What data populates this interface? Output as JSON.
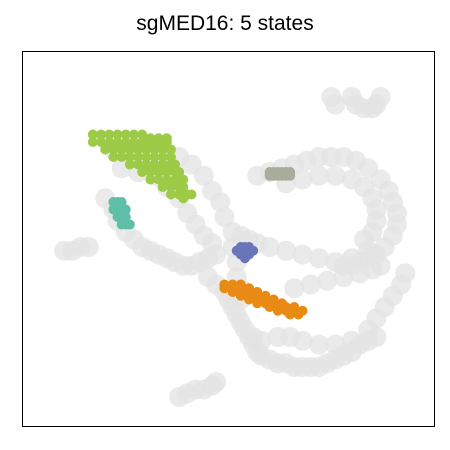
{
  "chart_data": {
    "type": "scatter",
    "title": "sgMED16: 5 states",
    "xlabel": "",
    "ylabel": "",
    "xlim": [
      0,
      100
    ],
    "ylim": [
      0,
      100
    ],
    "grid": false,
    "legend": "none",
    "axis_ticks": false,
    "background_color": "#e3e3e3",
    "background_clusters": [
      {
        "name": "upper-left-arm",
        "points": [
          [
            22,
            74
          ],
          [
            26,
            73
          ],
          [
            30,
            73
          ],
          [
            34,
            73
          ],
          [
            38,
            72
          ],
          [
            41,
            70
          ],
          [
            44,
            67
          ],
          [
            46,
            63
          ],
          [
            48,
            60
          ],
          [
            49,
            56
          ],
          [
            24,
            69
          ],
          [
            28,
            68
          ],
          [
            32,
            67
          ],
          [
            35,
            64
          ],
          [
            38,
            61
          ],
          [
            40,
            57
          ],
          [
            42,
            54
          ],
          [
            44,
            51
          ],
          [
            46,
            49
          ]
        ]
      },
      {
        "name": "left-blob",
        "points": [
          [
            20,
            61
          ],
          [
            22,
            58
          ],
          [
            23,
            55
          ],
          [
            25,
            52
          ],
          [
            27,
            50
          ],
          [
            29,
            48
          ],
          [
            31,
            47
          ],
          [
            33,
            46
          ],
          [
            35,
            45
          ],
          [
            37,
            44
          ],
          [
            39,
            43
          ],
          [
            41,
            43
          ],
          [
            43,
            44
          ],
          [
            45,
            45
          ],
          [
            47,
            46
          ]
        ]
      },
      {
        "name": "center-body",
        "points": [
          [
            45,
            40
          ],
          [
            47,
            38
          ],
          [
            49,
            36
          ],
          [
            50,
            34
          ],
          [
            51,
            32
          ],
          [
            52,
            30
          ],
          [
            53,
            28
          ],
          [
            54,
            26
          ],
          [
            55,
            24
          ],
          [
            56,
            22
          ],
          [
            57,
            20
          ],
          [
            58,
            19
          ],
          [
            60,
            18
          ],
          [
            62,
            17
          ],
          [
            64,
            17
          ],
          [
            66,
            16
          ],
          [
            68,
            16
          ],
          [
            70,
            16
          ],
          [
            72,
            16
          ],
          [
            74,
            17
          ],
          [
            76,
            18
          ],
          [
            78,
            19
          ],
          [
            80,
            20
          ],
          [
            82,
            22
          ],
          [
            84,
            23
          ],
          [
            86,
            24
          ]
        ]
      },
      {
        "name": "center-stem",
        "points": [
          [
            51,
            52
          ],
          [
            51,
            48
          ],
          [
            52,
            44
          ],
          [
            52,
            40
          ],
          [
            53,
            37
          ],
          [
            53,
            34
          ]
        ]
      },
      {
        "name": "right-arc",
        "points": [
          [
            57,
            67
          ],
          [
            60,
            68
          ],
          [
            63,
            69
          ],
          [
            66,
            70
          ],
          [
            69,
            71
          ],
          [
            72,
            72
          ],
          [
            75,
            72
          ],
          [
            78,
            72
          ],
          [
            81,
            71
          ],
          [
            84,
            69
          ],
          [
            87,
            66
          ],
          [
            89,
            63
          ],
          [
            90,
            60
          ],
          [
            91,
            57
          ],
          [
            91,
            54
          ],
          [
            90,
            51
          ],
          [
            88,
            48
          ],
          [
            86,
            46
          ],
          [
            84,
            45
          ],
          [
            82,
            44
          ],
          [
            80,
            43
          ],
          [
            78,
            43
          ],
          [
            76,
            44
          ],
          [
            72,
            45
          ],
          [
            68,
            46
          ],
          [
            64,
            47
          ],
          [
            60,
            48
          ],
          [
            57,
            49
          ],
          [
            55,
            50
          ],
          [
            53,
            51
          ],
          [
            64,
            65
          ],
          [
            68,
            66
          ],
          [
            72,
            67
          ],
          [
            76,
            67
          ],
          [
            80,
            66
          ],
          [
            83,
            64
          ],
          [
            85,
            61
          ],
          [
            86,
            58
          ],
          [
            86,
            55
          ],
          [
            85,
            52
          ],
          [
            83,
            50
          ]
        ]
      },
      {
        "name": "right-lower-band",
        "points": [
          [
            66,
            37
          ],
          [
            70,
            38
          ],
          [
            74,
            39
          ],
          [
            78,
            40
          ],
          [
            82,
            41
          ],
          [
            85,
            42
          ],
          [
            87,
            43
          ],
          [
            80,
            45
          ],
          [
            84,
            47
          ]
        ]
      },
      {
        "name": "top-right-small",
        "points": [
          [
            80,
            88
          ],
          [
            81,
            86
          ],
          [
            83,
            85
          ],
          [
            85,
            85
          ],
          [
            86,
            86
          ],
          [
            87,
            88
          ],
          [
            75,
            88
          ],
          [
            76,
            86
          ]
        ]
      },
      {
        "name": "left-small",
        "points": [
          [
            10,
            47
          ],
          [
            12,
            47
          ],
          [
            14,
            48
          ],
          [
            16,
            48
          ]
        ]
      },
      {
        "name": "bottom-small",
        "points": [
          [
            38,
            8
          ],
          [
            40,
            9
          ],
          [
            42,
            10
          ],
          [
            44,
            10
          ],
          [
            46,
            11
          ],
          [
            47,
            12
          ]
        ]
      },
      {
        "name": "lower-diagonal",
        "points": [
          [
            56,
            24
          ],
          [
            58,
            23
          ],
          [
            62,
            24
          ],
          [
            65,
            24
          ],
          [
            68,
            23
          ],
          [
            72,
            22
          ],
          [
            76,
            22
          ],
          [
            80,
            23
          ],
          [
            84,
            26
          ],
          [
            86,
            29
          ],
          [
            88,
            32
          ],
          [
            90,
            35
          ],
          [
            92,
            38
          ],
          [
            93,
            41
          ]
        ]
      }
    ],
    "highlighted_states": [
      {
        "color": "#9dcb47",
        "points": [
          [
            17,
            78
          ],
          [
            19,
            78
          ],
          [
            21,
            78
          ],
          [
            23,
            78
          ],
          [
            25,
            78
          ],
          [
            27,
            78
          ],
          [
            29,
            78
          ],
          [
            31,
            77
          ],
          [
            33,
            77
          ],
          [
            35,
            77
          ],
          [
            17,
            76
          ],
          [
            19,
            76
          ],
          [
            21,
            76
          ],
          [
            23,
            76
          ],
          [
            25,
            76
          ],
          [
            27,
            76
          ],
          [
            29,
            76
          ],
          [
            31,
            76
          ],
          [
            33,
            76
          ],
          [
            35,
            76
          ],
          [
            20,
            74
          ],
          [
            22,
            74
          ],
          [
            24,
            74
          ],
          [
            26,
            74
          ],
          [
            28,
            74
          ],
          [
            30,
            74
          ],
          [
            32,
            74
          ],
          [
            34,
            74
          ],
          [
            36,
            74
          ],
          [
            22,
            72
          ],
          [
            24,
            72
          ],
          [
            26,
            72
          ],
          [
            28,
            72
          ],
          [
            30,
            72
          ],
          [
            32,
            72
          ],
          [
            34,
            72
          ],
          [
            36,
            72
          ],
          [
            26,
            70
          ],
          [
            28,
            70
          ],
          [
            30,
            70
          ],
          [
            32,
            70
          ],
          [
            34,
            70
          ],
          [
            36,
            70
          ],
          [
            37,
            70
          ],
          [
            29,
            68
          ],
          [
            31,
            68
          ],
          [
            33,
            68
          ],
          [
            35,
            68
          ],
          [
            37,
            68
          ],
          [
            38,
            68
          ],
          [
            31,
            66
          ],
          [
            33,
            66
          ],
          [
            35,
            66
          ],
          [
            37,
            66
          ],
          [
            39,
            66
          ],
          [
            34,
            64
          ],
          [
            36,
            64
          ],
          [
            38,
            64
          ],
          [
            39,
            64
          ],
          [
            36,
            62
          ],
          [
            38,
            62
          ],
          [
            40,
            62
          ],
          [
            39,
            61
          ],
          [
            41,
            62
          ]
        ]
      },
      {
        "color": "#5dbfa7",
        "points": [
          [
            22,
            60
          ],
          [
            23,
            60
          ],
          [
            24,
            60
          ],
          [
            22,
            58
          ],
          [
            23,
            58
          ],
          [
            24,
            58
          ],
          [
            25,
            58
          ],
          [
            23,
            56
          ],
          [
            24,
            56
          ],
          [
            25,
            56
          ],
          [
            24,
            54
          ],
          [
            25,
            54
          ],
          [
            26,
            54
          ]
        ]
      },
      {
        "color": "#a8ad9b",
        "points": [
          [
            60,
            68
          ],
          [
            61,
            68
          ],
          [
            62,
            68
          ],
          [
            63,
            68
          ],
          [
            64,
            68
          ],
          [
            65,
            68
          ],
          [
            60,
            67
          ],
          [
            61,
            67
          ],
          [
            62,
            67
          ],
          [
            63,
            67
          ],
          [
            64,
            67
          ],
          [
            65,
            67
          ]
        ]
      },
      {
        "color": "#6a74b8",
        "points": [
          [
            53,
            48
          ],
          [
            54,
            48
          ],
          [
            55,
            48
          ],
          [
            52,
            47
          ],
          [
            53,
            47
          ],
          [
            54,
            47
          ],
          [
            55,
            47
          ],
          [
            56,
            47
          ],
          [
            53,
            46
          ],
          [
            54,
            46
          ],
          [
            55,
            46
          ],
          [
            54,
            45
          ]
        ]
      },
      {
        "color": "#e88a14",
        "points": [
          [
            49,
            38
          ],
          [
            51,
            38
          ],
          [
            53,
            38
          ],
          [
            49,
            37
          ],
          [
            51,
            37
          ],
          [
            53,
            37
          ],
          [
            55,
            37
          ],
          [
            51,
            36
          ],
          [
            53,
            36
          ],
          [
            55,
            36
          ],
          [
            57,
            36
          ],
          [
            53,
            35
          ],
          [
            55,
            35
          ],
          [
            57,
            35
          ],
          [
            59,
            35
          ],
          [
            55,
            34
          ],
          [
            57,
            34
          ],
          [
            59,
            34
          ],
          [
            61,
            34
          ],
          [
            57,
            33
          ],
          [
            59,
            33
          ],
          [
            61,
            33
          ],
          [
            63,
            33
          ],
          [
            60,
            32
          ],
          [
            62,
            32
          ],
          [
            64,
            32
          ],
          [
            66,
            32
          ],
          [
            62,
            31
          ],
          [
            64,
            31
          ],
          [
            66,
            31
          ],
          [
            68,
            31
          ],
          [
            65,
            30
          ],
          [
            67,
            30
          ]
        ]
      }
    ]
  }
}
